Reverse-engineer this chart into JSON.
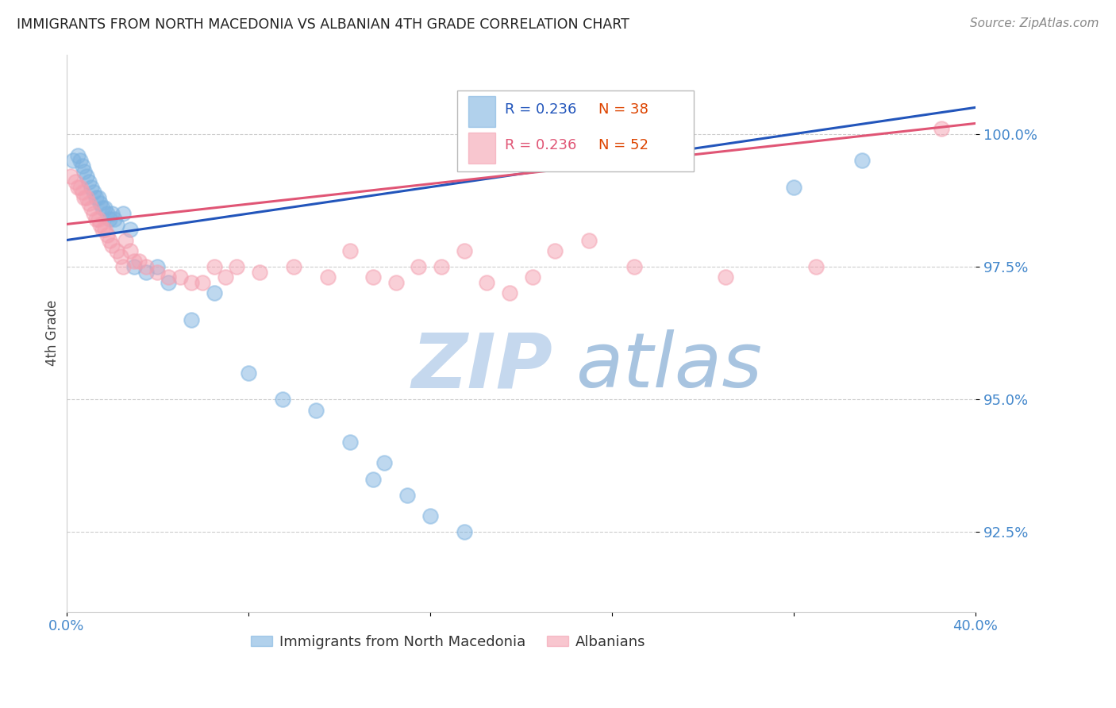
{
  "title": "IMMIGRANTS FROM NORTH MACEDONIA VS ALBANIAN 4TH GRADE CORRELATION CHART",
  "source": "Source: ZipAtlas.com",
  "ylabel": "4th Grade",
  "y_ticks": [
    92.5,
    95.0,
    97.5,
    100.0
  ],
  "y_tick_labels": [
    "92.5%",
    "95.0%",
    "97.5%",
    "100.0%"
  ],
  "xlim": [
    0.0,
    40.0
  ],
  "ylim": [
    91.0,
    101.5
  ],
  "legend_blue_label": "Immigrants from North Macedonia",
  "legend_pink_label": "Albanians",
  "R_blue": 0.236,
  "N_blue": 38,
  "R_pink": 0.236,
  "N_pink": 52,
  "blue_color": "#7EB3E0",
  "pink_color": "#F4A0B0",
  "trend_blue_color": "#2255BB",
  "trend_pink_color": "#E05575",
  "axis_label_color": "#4488CC",
  "title_color": "#222222",
  "grid_color": "#CCCCCC",
  "watermark_zip_color": "#C8DCF0",
  "watermark_atlas_color": "#B0C8E8",
  "blue_points_x": [
    0.3,
    0.5,
    0.6,
    0.7,
    0.8,
    0.9,
    1.0,
    1.1,
    1.2,
    1.3,
    1.4,
    1.5,
    1.6,
    1.7,
    1.8,
    1.9,
    2.0,
    2.1,
    2.2,
    2.5,
    2.8,
    3.0,
    3.5,
    4.0,
    4.5,
    5.5,
    6.5,
    8.0,
    9.5,
    11.0,
    12.5,
    13.5,
    14.0,
    15.0,
    16.0,
    17.5,
    32.0,
    35.0
  ],
  "blue_points_y": [
    99.5,
    99.6,
    99.5,
    99.4,
    99.3,
    99.2,
    99.1,
    99.0,
    98.9,
    98.8,
    98.8,
    98.7,
    98.6,
    98.6,
    98.5,
    98.4,
    98.5,
    98.4,
    98.3,
    98.5,
    98.2,
    97.5,
    97.4,
    97.5,
    97.2,
    96.5,
    97.0,
    95.5,
    95.0,
    94.8,
    94.2,
    93.5,
    93.8,
    93.2,
    92.8,
    92.5,
    99.0,
    99.5
  ],
  "pink_points_x": [
    0.2,
    0.4,
    0.5,
    0.6,
    0.7,
    0.8,
    0.9,
    1.0,
    1.1,
    1.2,
    1.3,
    1.4,
    1.5,
    1.6,
    1.7,
    1.8,
    1.9,
    2.0,
    2.2,
    2.4,
    2.5,
    2.6,
    2.8,
    3.0,
    3.2,
    3.5,
    4.0,
    4.5,
    5.0,
    5.5,
    6.0,
    6.5,
    7.0,
    7.5,
    8.5,
    10.0,
    11.5,
    12.5,
    13.5,
    14.5,
    15.5,
    16.5,
    17.5,
    18.5,
    19.5,
    20.5,
    21.5,
    23.0,
    25.0,
    29.0,
    33.0,
    38.5
  ],
  "pink_points_y": [
    99.2,
    99.1,
    99.0,
    99.0,
    98.9,
    98.8,
    98.8,
    98.7,
    98.6,
    98.5,
    98.4,
    98.4,
    98.3,
    98.2,
    98.2,
    98.1,
    98.0,
    97.9,
    97.8,
    97.7,
    97.5,
    98.0,
    97.8,
    97.6,
    97.6,
    97.5,
    97.4,
    97.3,
    97.3,
    97.2,
    97.2,
    97.5,
    97.3,
    97.5,
    97.4,
    97.5,
    97.3,
    97.8,
    97.3,
    97.2,
    97.5,
    97.5,
    97.8,
    97.2,
    97.0,
    97.3,
    97.8,
    98.0,
    97.5,
    97.3,
    97.5,
    100.1
  ],
  "trend_blue_x0": 0.0,
  "trend_blue_y0": 98.0,
  "trend_blue_x1": 40.0,
  "trend_blue_y1": 100.5,
  "trend_pink_x0": 0.0,
  "trend_pink_y0": 98.3,
  "trend_pink_x1": 40.0,
  "trend_pink_y1": 100.2
}
